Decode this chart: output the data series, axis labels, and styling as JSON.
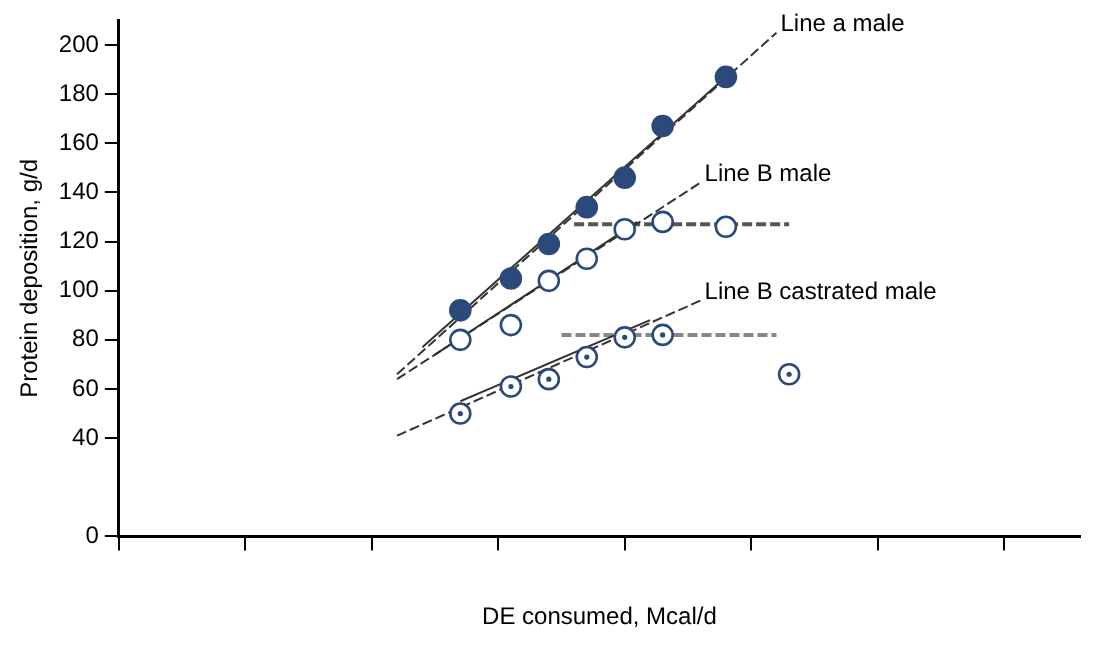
{
  "chart_data": {
    "type": "scatter",
    "xlabel": "DE consumed, Mcal/d",
    "ylabel": "Protein deposition, g/d",
    "categories": [
      null,
      null,
      null,
      null,
      null,
      null,
      null,
      null,
      null,
      null,
      null,
      null,
      null,
      null,
      null,
      null,
      null,
      null,
      null,
      null,
      null,
      null,
      null,
      null,
      null,
      null,
      null,
      null,
      null,
      null,
      null,
      null,
      null,
      null,
      null,
      null,
      null,
      null,
      null,
      null,
      null,
      null,
      null,
      null,
      null,
      null,
      null,
      null,
      null,
      null,
      null,
      null,
      null,
      null,
      null,
      null,
      null,
      null,
      null,
      null,
      null,
      null,
      null,
      null,
      null,
      null,
      null,
      null,
      null,
      null,
      null,
      null,
      null,
      null,
      null,
      null,
      null
    ],
    "ylim": [
      0,
      210
    ],
    "yticks": [
      0,
      40,
      60,
      80,
      100,
      120,
      140,
      160,
      180,
      200
    ],
    "grid": false,
    "legend": false,
    "marker": "circle",
    "series": [
      {
        "name": "Line a male",
        "color": "#2b4a7a",
        "values": [
          null,
          null,
          null,
          null,
          null,
          null,
          null,
          null,
          null,
          null,
          null,
          null,
          null,
          null,
          null,
          null,
          null,
          null,
          null,
          null,
          null,
          null,
          null,
          null,
          null,
          null,
          null,
          92,
          null,
          null,
          null,
          105,
          null,
          null,
          119,
          null,
          null,
          134,
          null,
          null,
          146,
          null,
          null,
          167,
          null,
          null,
          null,
          null,
          187,
          null,
          null,
          null,
          null,
          null,
          null,
          null,
          null,
          null,
          null,
          null,
          null,
          null,
          null,
          null,
          null,
          null,
          null,
          null,
          null,
          null,
          null,
          null,
          null,
          null,
          null,
          null,
          null
        ]
      },
      {
        "type": "line",
        "marker": "none",
        "color": "#333333",
        "line_style": "dashed",
        "values": [
          null,
          null,
          null,
          null,
          null,
          null,
          null,
          null,
          null,
          null,
          null,
          null,
          null,
          null,
          null,
          null,
          null,
          null,
          null,
          null,
          null,
          null,
          66,
          null,
          null,
          null,
          null,
          null,
          null,
          null,
          null,
          null,
          null,
          null,
          null,
          null,
          null,
          null,
          null,
          null,
          null,
          null,
          null,
          null,
          null,
          null,
          null,
          null,
          null,
          null,
          null,
          null,
          205,
          null,
          null,
          null,
          null,
          null,
          null,
          null,
          null,
          null,
          null,
          null,
          null,
          null,
          null,
          null,
          null,
          null,
          null,
          null,
          null,
          null,
          null,
          null,
          null
        ]
      },
      {
        "type": "line",
        "marker": "none",
        "color": "#333333",
        "line_style": "solid",
        "values": [
          null,
          null,
          null,
          null,
          null,
          null,
          null,
          null,
          null,
          null,
          null,
          null,
          null,
          null,
          null,
          null,
          null,
          null,
          null,
          null,
          null,
          null,
          null,
          null,
          77,
          null,
          null,
          null,
          null,
          null,
          null,
          null,
          null,
          null,
          null,
          null,
          null,
          null,
          null,
          null,
          null,
          null,
          null,
          null,
          null,
          null,
          null,
          null,
          187,
          null,
          null,
          null,
          null,
          null,
          null,
          null,
          null,
          null,
          null,
          null,
          null,
          null,
          null,
          null,
          null,
          null,
          null,
          null,
          null,
          null,
          null,
          null,
          null,
          null,
          null,
          null,
          null
        ]
      },
      {
        "name": "Line B male",
        "color": "#2b4a7a",
        "marker": "circle-open",
        "values": [
          null,
          null,
          null,
          null,
          null,
          null,
          null,
          null,
          null,
          null,
          null,
          null,
          null,
          null,
          null,
          null,
          null,
          null,
          null,
          null,
          null,
          null,
          null,
          null,
          null,
          null,
          null,
          80,
          null,
          null,
          null,
          86,
          null,
          null,
          104,
          null,
          null,
          113,
          null,
          null,
          125,
          null,
          null,
          128,
          null,
          null,
          null,
          null,
          126,
          null,
          null,
          null,
          null,
          null,
          null,
          null,
          null,
          null,
          null,
          null,
          null,
          null,
          null,
          null,
          null,
          null,
          null,
          null,
          null,
          null,
          null,
          null,
          null,
          null,
          null,
          null,
          null
        ]
      },
      {
        "type": "line",
        "marker": "none",
        "color": "#333333",
        "line_style": "dashed",
        "values": [
          null,
          null,
          null,
          null,
          null,
          null,
          null,
          null,
          null,
          null,
          null,
          null,
          null,
          null,
          null,
          null,
          null,
          null,
          null,
          null,
          null,
          null,
          64,
          null,
          null,
          null,
          null,
          null,
          null,
          null,
          null,
          null,
          null,
          null,
          null,
          null,
          null,
          null,
          null,
          null,
          null,
          null,
          null,
          null,
          null,
          null,
          144,
          null,
          null,
          null,
          null,
          null,
          null,
          null,
          null,
          null,
          null,
          null,
          null,
          null,
          null,
          null,
          null,
          null,
          null,
          null,
          null,
          null,
          null,
          null,
          null,
          null,
          null,
          null,
          null,
          null,
          null
        ]
      },
      {
        "type": "line",
        "marker": "none",
        "color": "#333333",
        "line_style": "solid",
        "values": [
          null,
          null,
          null,
          null,
          null,
          null,
          null,
          null,
          null,
          null,
          null,
          null,
          null,
          null,
          null,
          null,
          null,
          null,
          null,
          null,
          null,
          null,
          null,
          null,
          null,
          74,
          null,
          null,
          null,
          null,
          null,
          null,
          null,
          null,
          null,
          null,
          null,
          null,
          null,
          null,
          null,
          128,
          null,
          null,
          null,
          null,
          null,
          null,
          null,
          null,
          null,
          null,
          null,
          null,
          null,
          null,
          null,
          null,
          null,
          null,
          null,
          null,
          null,
          null,
          null,
          null,
          null,
          null,
          null,
          null,
          null,
          null,
          null,
          null,
          null,
          null,
          null
        ]
      },
      {
        "type": "line",
        "marker": "none",
        "color": "#555555",
        "line_style": "dashed",
        "values": [
          null,
          null,
          null,
          null,
          null,
          null,
          null,
          null,
          null,
          null,
          null,
          null,
          null,
          null,
          null,
          null,
          null,
          null,
          null,
          null,
          null,
          null,
          null,
          null,
          null,
          null,
          null,
          null,
          null,
          null,
          null,
          null,
          null,
          null,
          null,
          null,
          127,
          null,
          null,
          null,
          null,
          null,
          null,
          null,
          null,
          null,
          null,
          null,
          null,
          null,
          null,
          null,
          null,
          127,
          null,
          null,
          null,
          null,
          null,
          null,
          null,
          null,
          null,
          null,
          null,
          null,
          null,
          null,
          null,
          null,
          null,
          null,
          null,
          null,
          null,
          null,
          null
        ]
      },
      {
        "name": "Line B castrated male",
        "color": "#2b4a7a",
        "marker": "circle-dot",
        "values": [
          null,
          null,
          null,
          null,
          null,
          null,
          null,
          null,
          null,
          null,
          null,
          null,
          null,
          null,
          null,
          null,
          null,
          null,
          null,
          null,
          null,
          null,
          null,
          null,
          null,
          null,
          null,
          50,
          null,
          null,
          null,
          61,
          null,
          null,
          64,
          null,
          null,
          73,
          null,
          null,
          81,
          null,
          null,
          82,
          null,
          null,
          null,
          null,
          null,
          null,
          null,
          null,
          null,
          66,
          null,
          null,
          null,
          null,
          null,
          null,
          null,
          null,
          null,
          null,
          null,
          null,
          null,
          null,
          null,
          null,
          null,
          null,
          null,
          null,
          null,
          null,
          null
        ]
      },
      {
        "type": "line",
        "marker": "none",
        "color": "#333333",
        "line_style": "dashed",
        "values": [
          null,
          null,
          null,
          null,
          null,
          null,
          null,
          null,
          null,
          null,
          null,
          null,
          null,
          null,
          null,
          null,
          null,
          null,
          null,
          null,
          null,
          null,
          41,
          null,
          null,
          null,
          null,
          null,
          null,
          null,
          null,
          null,
          null,
          null,
          null,
          null,
          null,
          null,
          null,
          null,
          null,
          null,
          null,
          null,
          null,
          null,
          96,
          null,
          null,
          null,
          null,
          null,
          null,
          null,
          null,
          null,
          null,
          null,
          null,
          null,
          null,
          null,
          null,
          null,
          null,
          null,
          null,
          null,
          null,
          null,
          null,
          null,
          null,
          null,
          null,
          null,
          null
        ]
      },
      {
        "type": "line",
        "marker": "none",
        "color": "#333333",
        "line_style": "solid",
        "values": [
          null,
          null,
          null,
          null,
          null,
          null,
          null,
          null,
          null,
          null,
          null,
          null,
          null,
          null,
          null,
          null,
          null,
          null,
          null,
          null,
          null,
          null,
          null,
          null,
          null,
          null,
          null,
          55,
          null,
          null,
          null,
          null,
          null,
          null,
          null,
          null,
          null,
          null,
          null,
          null,
          null,
          null,
          88,
          null,
          null,
          null,
          null,
          null,
          null,
          null,
          null,
          null,
          null,
          null,
          null,
          null,
          null,
          null,
          null,
          null,
          null,
          null,
          null,
          null,
          null,
          null,
          null,
          null,
          null,
          null,
          null,
          null,
          null,
          null,
          null,
          null,
          null
        ]
      },
      {
        "type": "line",
        "marker": "none",
        "color": "#888888",
        "line_style": "dashed",
        "values": [
          null,
          null,
          null,
          null,
          null,
          null,
          null,
          null,
          null,
          null,
          null,
          null,
          null,
          null,
          null,
          null,
          null,
          null,
          null,
          null,
          null,
          null,
          null,
          null,
          null,
          null,
          null,
          null,
          null,
          null,
          null,
          null,
          null,
          null,
          null,
          82,
          null,
          null,
          null,
          null,
          null,
          null,
          null,
          null,
          null,
          null,
          null,
          null,
          null,
          null,
          null,
          null,
          82,
          null,
          null,
          null,
          null,
          null,
          null,
          null,
          null,
          null,
          null,
          null,
          null,
          null,
          null,
          null,
          null,
          null,
          null,
          null,
          null,
          null,
          null,
          null,
          null
        ]
      }
    ]
  }
}
